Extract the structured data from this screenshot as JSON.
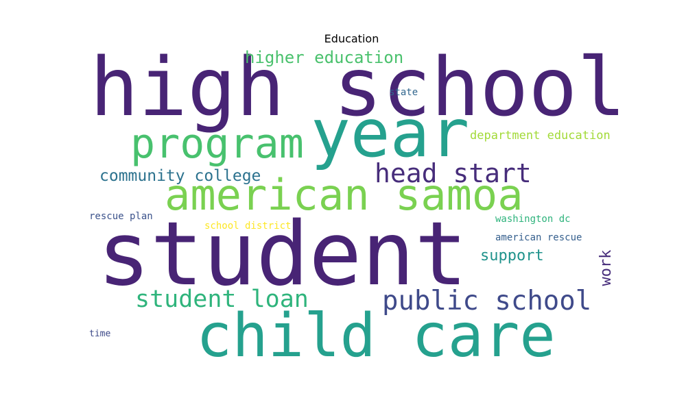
{
  "chart_data": {
    "type": "wordcloud",
    "title": "Education",
    "words": [
      {
        "text": "high school",
        "color": "#482475"
      },
      {
        "text": "year",
        "color": "#25a18e"
      },
      {
        "text": "student",
        "color": "#482475"
      },
      {
        "text": "child care",
        "color": "#25a18e"
      },
      {
        "text": "american samoa",
        "color": "#7ad151"
      },
      {
        "text": "program",
        "color": "#48c16e"
      },
      {
        "text": "public school",
        "color": "#3f4a8a"
      },
      {
        "text": "head start",
        "color": "#472d7b"
      },
      {
        "text": "student loan",
        "color": "#2fb47c"
      },
      {
        "text": "higher education",
        "color": "#4ac16d"
      },
      {
        "text": "community college",
        "color": "#2c728e"
      },
      {
        "text": "support",
        "color": "#20938c"
      },
      {
        "text": "work",
        "color": "#472d7b"
      },
      {
        "text": "department education",
        "color": "#a2da37"
      },
      {
        "text": "state",
        "color": "#31668e"
      },
      {
        "text": "washington dc",
        "color": "#2eb37c"
      },
      {
        "text": "american rescue",
        "color": "#355f8d"
      },
      {
        "text": "school district",
        "color": "#fde725"
      },
      {
        "text": "rescue plan",
        "color": "#3b528b"
      },
      {
        "text": "time",
        "color": "#3e4a89"
      }
    ]
  }
}
